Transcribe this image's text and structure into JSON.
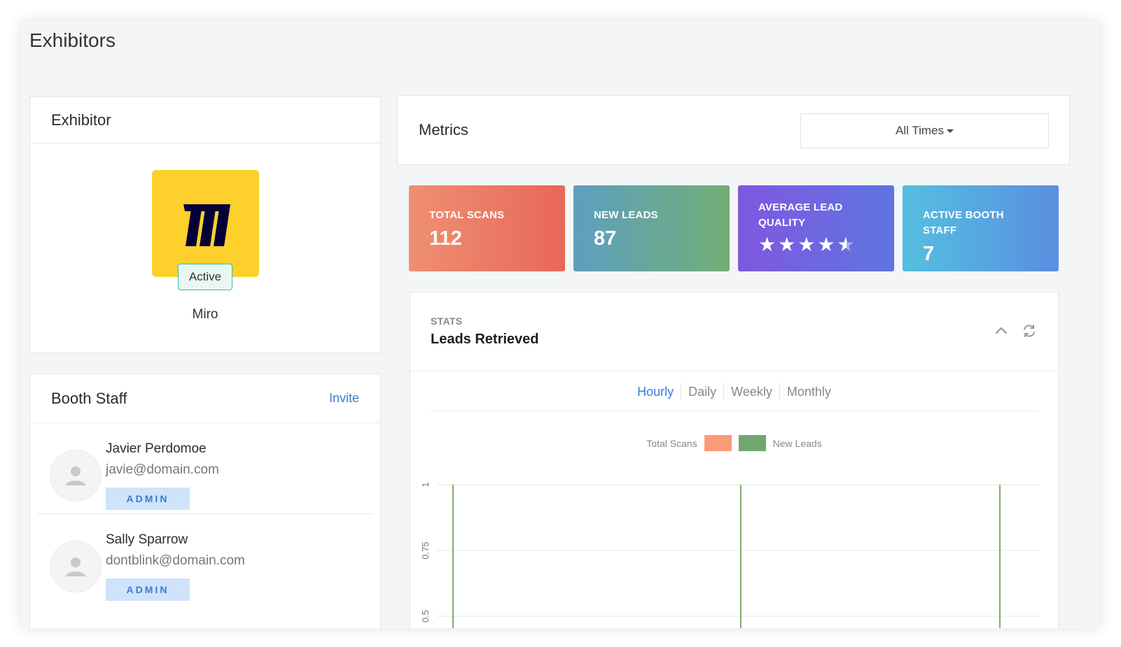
{
  "page": {
    "title": "Exhibitors"
  },
  "exhibitor": {
    "header": "Exhibitor",
    "name": "Miro",
    "status": "Active",
    "logo_color": "#fdd02b",
    "logo_mark_color": "#050038"
  },
  "booth_staff": {
    "header": "Booth Staff",
    "invite_label": "Invite",
    "members": [
      {
        "name": "Javier Perdomoe",
        "email": "javie@domain.com",
        "role": "ADMIN"
      },
      {
        "name": "Sally Sparrow",
        "email": "dontblink@domain.com",
        "role": "ADMIN"
      }
    ]
  },
  "metrics": {
    "header": "Metrics",
    "time_filter": "All Times",
    "tiles": [
      {
        "label": "TOTAL SCANS",
        "value": "112"
      },
      {
        "label": "NEW LEADS",
        "value": "87"
      },
      {
        "label": "AVERAGE LEAD QUALITY",
        "rating": 4.5,
        "rating_max": 5
      },
      {
        "label": "ACTIVE BOOTH STAFF",
        "value": "7"
      }
    ]
  },
  "stats": {
    "kicker": "STATS",
    "title": "Leads Retrieved",
    "tabs": [
      "Hourly",
      "Daily",
      "Weekly",
      "Monthly"
    ],
    "active_tab": "Hourly"
  },
  "chart_data": {
    "type": "bar",
    "series": [
      {
        "name": "Total Scans",
        "color": "#f99a7a"
      },
      {
        "name": "New Leads",
        "color": "#6fa86f"
      }
    ],
    "y_ticks": [
      "1",
      "0.75",
      "0.5"
    ],
    "ylim": [
      0.5,
      1
    ],
    "bar_color": "#7fae6a",
    "bar_count": 3,
    "grid": true,
    "legend_position": "top"
  }
}
